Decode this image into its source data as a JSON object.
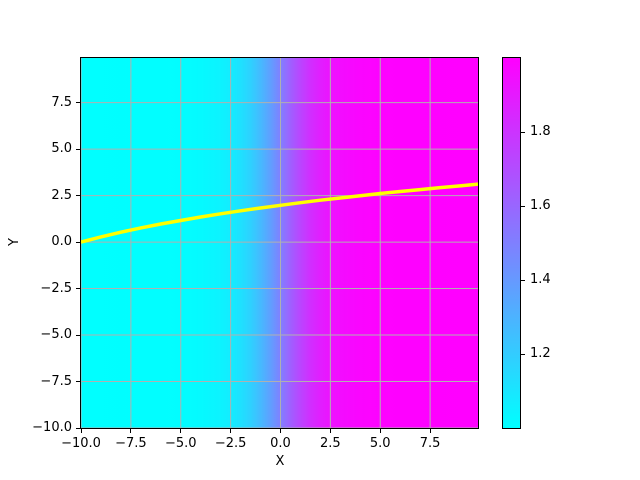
{
  "chart_data": {
    "type": "heatmap",
    "title": "",
    "xlabel": "X",
    "ylabel": "Y",
    "xlim": [
      -10,
      9.9
    ],
    "ylim": [
      -10,
      9.9
    ],
    "xticks": [
      -10,
      -7.5,
      -5,
      -2.5,
      0,
      2.5,
      5,
      7.5
    ],
    "xtick_labels": [
      "−10.0",
      "−7.5",
      "−5.0",
      "−2.5",
      "0.0",
      "2.5",
      "5.0",
      "7.5"
    ],
    "yticks": [
      -10,
      -7.5,
      -5,
      -2.5,
      0,
      2.5,
      5,
      7.5
    ],
    "ytick_labels": [
      "−10.0",
      "−7.5",
      "−5.0",
      "−2.5",
      "0.0",
      "2.5",
      "5.0",
      "7.5"
    ],
    "grid": true,
    "grid_color": "#b0b0b0",
    "colormap": {
      "name": "cool",
      "low_color": "#00ffff",
      "high_color": "#ff00ff"
    },
    "colorbar": {
      "position": "right",
      "vmin": 1.0,
      "vmax": 2.0,
      "ticks": [
        1.2,
        1.4,
        1.6,
        1.8
      ],
      "tick_labels": [
        "1.2",
        "1.4",
        "1.6",
        "1.8"
      ]
    },
    "field": {
      "depends_on": "x only (vertical color bands, constant in y)",
      "description": "value(x) ≈ 1 + 1/(1+exp(−x)); cyan ≈ 1.0 on the left, magenta ≈ 2.0 on the right, smooth sigmoid transition centred on x = 0",
      "samples": [
        {
          "x": -10,
          "value": 1.0
        },
        {
          "x": -6,
          "value": 1.002
        },
        {
          "x": -5,
          "value": 1.007
        },
        {
          "x": -4,
          "value": 1.018
        },
        {
          "x": -3,
          "value": 1.047
        },
        {
          "x": -2.5,
          "value": 1.076
        },
        {
          "x": -2,
          "value": 1.119
        },
        {
          "x": -1.5,
          "value": 1.182
        },
        {
          "x": -1,
          "value": 1.269
        },
        {
          "x": -0.5,
          "value": 1.378
        },
        {
          "x": 0,
          "value": 1.5
        },
        {
          "x": 0.5,
          "value": 1.622
        },
        {
          "x": 1,
          "value": 1.731
        },
        {
          "x": 1.5,
          "value": 1.818
        },
        {
          "x": 2,
          "value": 1.881
        },
        {
          "x": 2.5,
          "value": 1.924
        },
        {
          "x": 3,
          "value": 1.953
        },
        {
          "x": 4,
          "value": 1.982
        },
        {
          "x": 5,
          "value": 1.993
        },
        {
          "x": 6,
          "value": 1.998
        },
        {
          "x": 9.9,
          "value": 2.0
        }
      ]
    },
    "line": {
      "color": "#ffff00",
      "width": 3.5,
      "points": [
        [
          -10,
          0.0
        ],
        [
          -9,
          0.28
        ],
        [
          -8,
          0.53
        ],
        [
          -7,
          0.76
        ],
        [
          -6,
          0.97
        ],
        [
          -5,
          1.16
        ],
        [
          -4,
          1.35
        ],
        [
          -3,
          1.52
        ],
        [
          -2,
          1.68
        ],
        [
          -1,
          1.83
        ],
        [
          0,
          1.98
        ],
        [
          1,
          2.12
        ],
        [
          2,
          2.25
        ],
        [
          3,
          2.37
        ],
        [
          4,
          2.49
        ],
        [
          5,
          2.61
        ],
        [
          6,
          2.72
        ],
        [
          7,
          2.82
        ],
        [
          8,
          2.93
        ],
        [
          9,
          3.02
        ],
        [
          9.9,
          3.12
        ]
      ]
    }
  }
}
